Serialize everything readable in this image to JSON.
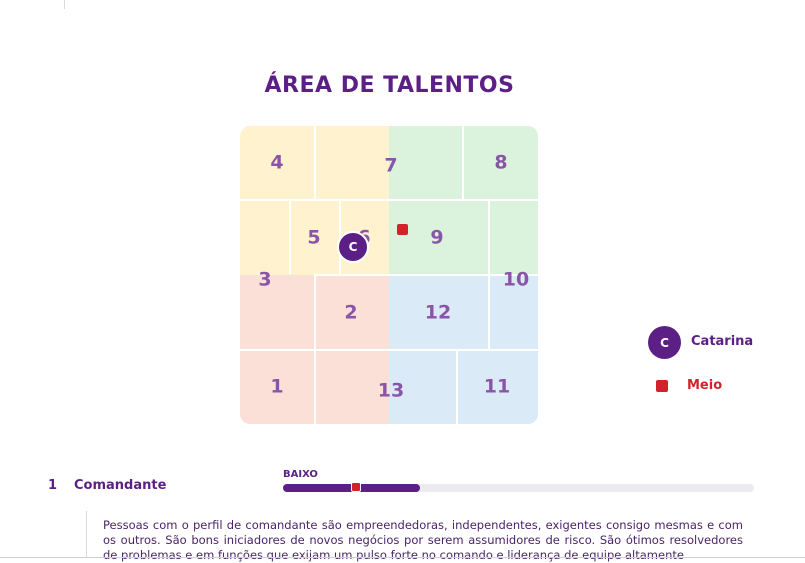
{
  "title": "ÁREA DE TALENTOS",
  "colors": {
    "brand": "#5b1f86",
    "zone_yellow": "#fff2cf",
    "zone_green": "#dbf3dc",
    "zone_red": "#fae0d7",
    "zone_blue": "#dbeaf7",
    "marker": "#d32229"
  },
  "grid": {
    "numbers": [
      "4",
      "7",
      "8",
      "5",
      "6",
      "9",
      "3",
      "10",
      "2",
      "12",
      "1",
      "13",
      "11"
    ],
    "avatar_initial": "C"
  },
  "legend": {
    "person_initial": "C",
    "person_name": "Catarina",
    "marker_label": "Meio"
  },
  "profile": {
    "number": "1",
    "name": "Comandante",
    "scale_label": "BAIXO",
    "bar_fill_fraction": 0.29,
    "marker_fraction": 0.155,
    "description": "Pessoas com o perfil de comandante são empreendedoras, independentes, exigentes consigo mesmas e com os outros. São bons iniciadores de novos negócios por serem assumidores de risco. São ótimos resolvedores de problemas e em funções que exijam um pulso forte no comando e liderança de equipe altamente"
  }
}
